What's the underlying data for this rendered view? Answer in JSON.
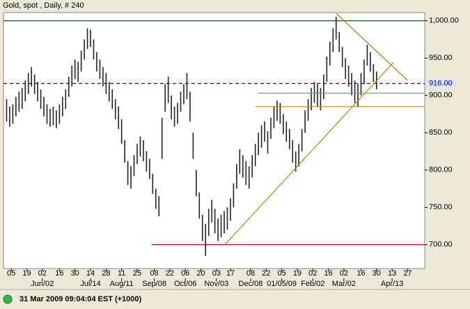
{
  "chart_data": {
    "type": "hlbar",
    "title": "Gold, spot , Daily, # 240",
    "color": "#222222",
    "high": [
      895,
      885,
      888,
      898,
      905,
      910,
      920,
      930,
      938,
      928,
      918,
      908,
      898,
      888,
      882,
      885,
      880,
      888,
      898,
      908,
      925,
      940,
      948,
      945,
      960,
      975,
      990,
      988,
      975,
      958,
      948,
      938,
      930,
      918,
      908,
      895,
      885,
      868,
      840,
      812,
      805,
      820,
      835,
      845,
      840,
      825,
      815,
      795,
      775,
      765,
      870,
      915,
      925,
      900,
      885,
      890,
      905,
      915,
      930,
      905,
      850,
      800,
      770,
      740,
      728,
      748,
      760,
      748,
      735,
      740,
      745,
      750,
      762,
      782,
      808,
      828,
      820,
      812,
      805,
      820,
      835,
      850,
      860,
      865,
      852,
      870,
      885,
      893,
      890,
      875,
      865,
      855,
      840,
      825,
      835,
      855,
      880,
      895,
      910,
      918,
      915,
      910,
      928,
      952,
      972,
      990,
      1005,
      985,
      965,
      950,
      940,
      930,
      920,
      915,
      930,
      948,
      968,
      958,
      942,
      932
    ],
    "low": [
      865,
      858,
      862,
      872,
      878,
      882,
      892,
      902,
      912,
      902,
      892,
      882,
      872,
      862,
      858,
      860,
      856,
      862,
      872,
      882,
      898,
      912,
      922,
      918,
      932,
      948,
      962,
      965,
      948,
      932,
      922,
      912,
      902,
      892,
      882,
      868,
      855,
      835,
      810,
      780,
      775,
      792,
      808,
      818,
      812,
      798,
      788,
      768,
      748,
      738,
      815,
      878,
      890,
      868,
      858,
      862,
      878,
      888,
      895,
      865,
      815,
      765,
      735,
      705,
      685,
      712,
      730,
      715,
      705,
      710,
      715,
      720,
      732,
      750,
      775,
      795,
      790,
      780,
      775,
      790,
      805,
      820,
      830,
      838,
      822,
      842,
      856,
      866,
      862,
      848,
      838,
      828,
      810,
      798,
      805,
      825,
      850,
      866,
      880,
      890,
      885,
      880,
      895,
      918,
      940,
      958,
      975,
      958,
      938,
      922,
      912,
      900,
      890,
      885,
      900,
      915,
      940,
      932,
      918,
      908
    ],
    "xlim": [
      -1,
      134.5
    ],
    "xticks": [
      {
        "value": 1.5,
        "label": "05"
      },
      {
        "value": 6.5,
        "label": "19"
      },
      {
        "value": 11.5,
        "label": "02"
      },
      {
        "value": 17,
        "label": "16"
      },
      {
        "value": 22,
        "label": "30"
      },
      {
        "value": 27,
        "label": "14"
      },
      {
        "value": 32,
        "label": "28"
      },
      {
        "value": 37,
        "label": "11"
      },
      {
        "value": 42,
        "label": "25"
      },
      {
        "value": 47.5,
        "label": "08"
      },
      {
        "value": 52.5,
        "label": "22"
      },
      {
        "value": 57.5,
        "label": "06"
      },
      {
        "value": 62.5,
        "label": "20"
      },
      {
        "value": 67.5,
        "label": "03"
      },
      {
        "value": 72,
        "label": "17"
      },
      {
        "value": 78.5,
        "label": "08"
      },
      {
        "value": 83.5,
        "label": "22"
      },
      {
        "value": 88.5,
        "label": "05"
      },
      {
        "value": 93.5,
        "label": "19"
      },
      {
        "value": 98.5,
        "label": "02"
      },
      {
        "value": 103.5,
        "label": "16"
      },
      {
        "value": 108.5,
        "label": "02"
      },
      {
        "value": 114,
        "label": "16"
      },
      {
        "value": 119,
        "label": "30"
      },
      {
        "value": 124,
        "label": "13"
      },
      {
        "value": 129,
        "label": "27"
      }
    ],
    "xticks2": [
      {
        "value": 11.5,
        "label": "Jun/02"
      },
      {
        "value": 27,
        "label": "Jul/14"
      },
      {
        "value": 37,
        "label": "Aug/11"
      },
      {
        "value": 47.5,
        "label": "Sep/08"
      },
      {
        "value": 57.5,
        "label": "Oct/06"
      },
      {
        "value": 67.5,
        "label": "Nov/03"
      },
      {
        "value": 78.5,
        "label": "Dec/08"
      },
      {
        "value": 88.5,
        "label": "01/05/09"
      },
      {
        "value": 98.5,
        "label": "Feb/02"
      },
      {
        "value": 108.5,
        "label": "Mar/02"
      },
      {
        "value": 124,
        "label": "Apr/13"
      }
    ],
    "ylim": [
      668,
      1011
    ],
    "yticks": [
      {
        "value": 700,
        "label": "700.00"
      },
      {
        "value": 750,
        "label": "750.00"
      },
      {
        "value": 800,
        "label": "800.00"
      },
      {
        "value": 850,
        "label": "850.00"
      },
      {
        "value": 900,
        "label": "900.00"
      },
      {
        "value": 950,
        "label": "950.00"
      },
      {
        "value": 1000,
        "label": "1,000.00"
      }
    ],
    "hlines": [
      {
        "value": 1000,
        "color": "#006400"
      },
      {
        "value": 916,
        "color": "#0000ff",
        "dash": true,
        "label": "916.00"
      },
      {
        "value": 700,
        "color": "#cc0000",
        "from": 46.6
      },
      {
        "value": 903,
        "color": "#c8860b",
        "from": 81
      },
      {
        "value": 885,
        "color": "#c8860b",
        "from": 80
      }
    ],
    "trendlines": [
      {
        "x": [
          70.2,
          124.4
        ],
        "y": [
          700,
          944
        ],
        "color": "#b8860b"
      },
      {
        "x": [
          106,
          129
        ],
        "y": [
          1010,
          920
        ],
        "color": "#c87020"
      }
    ]
  },
  "status": {
    "text": "31 Mar 2009 09:04:04  EST (+1000)"
  }
}
